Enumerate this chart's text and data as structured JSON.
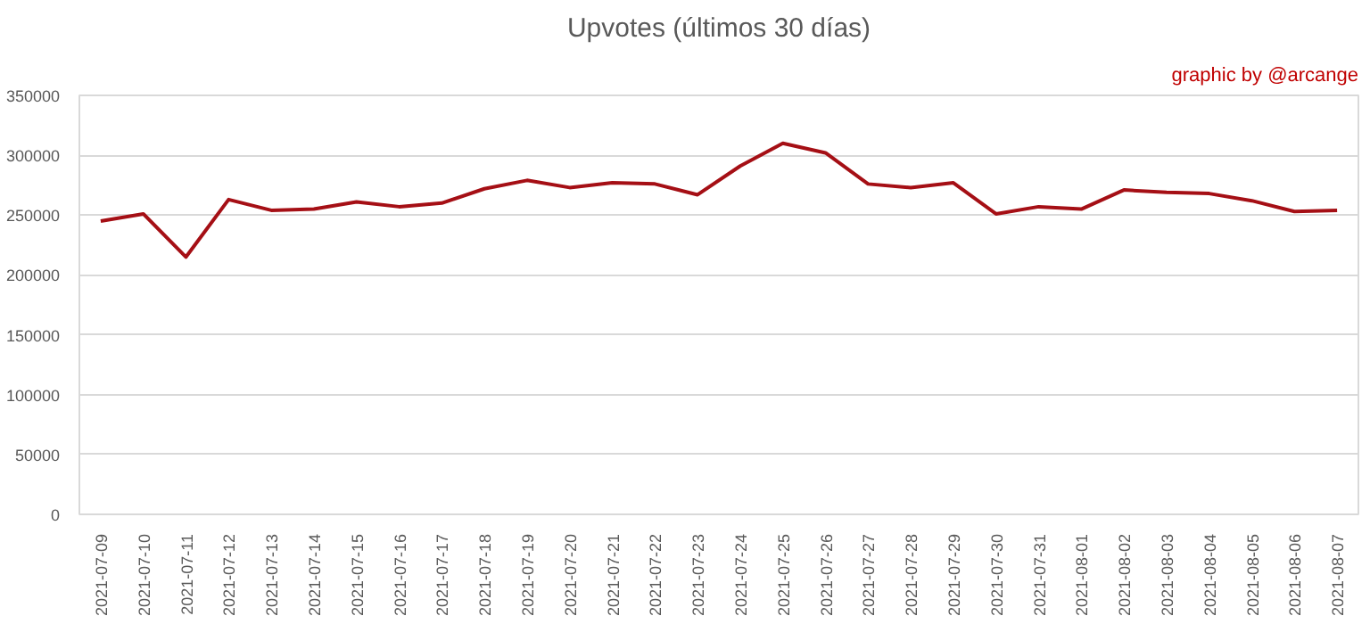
{
  "chart_data": {
    "type": "line",
    "title": "Upvotes (últimos 30 días)",
    "annotations": [
      "graphic by @arcange"
    ],
    "categories": [
      "2021-07-09",
      "2021-07-10",
      "2021-07-11",
      "2021-07-12",
      "2021-07-13",
      "2021-07-14",
      "2021-07-15",
      "2021-07-16",
      "2021-07-17",
      "2021-07-18",
      "2021-07-19",
      "2021-07-20",
      "2021-07-21",
      "2021-07-22",
      "2021-07-23",
      "2021-07-24",
      "2021-07-25",
      "2021-07-26",
      "2021-07-27",
      "2021-07-28",
      "2021-07-29",
      "2021-07-30",
      "2021-07-31",
      "2021-08-01",
      "2021-08-02",
      "2021-08-03",
      "2021-08-04",
      "2021-08-05",
      "2021-08-06",
      "2021-08-07"
    ],
    "series": [
      {
        "color": "#a50f15",
        "values": [
          245000,
          251000,
          215000,
          263000,
          254000,
          255000,
          261000,
          257000,
          260000,
          272000,
          279000,
          273000,
          277000,
          276000,
          267000,
          291000,
          310000,
          302000,
          276000,
          273000,
          277000,
          251000,
          257000,
          255000,
          271000,
          269000,
          268000,
          262000,
          253000,
          254000
        ]
      }
    ],
    "ylim": [
      0,
      350000
    ],
    "yticks": [
      0,
      50000,
      100000,
      150000,
      200000,
      250000,
      300000,
      350000
    ],
    "grid": "y",
    "marker": "none",
    "line_style": "solid"
  }
}
